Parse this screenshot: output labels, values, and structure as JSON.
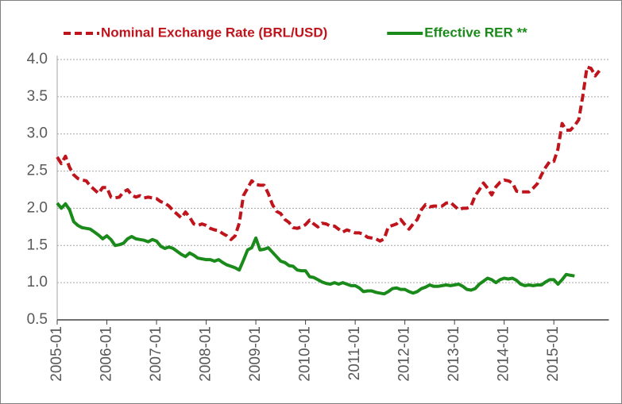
{
  "chart_data": {
    "type": "line",
    "x": [
      "2005-01",
      null,
      null,
      null,
      null,
      null,
      null,
      null,
      null,
      null,
      null,
      null,
      "2006-01",
      null,
      null,
      null,
      null,
      null,
      null,
      null,
      null,
      null,
      null,
      null,
      "2007-01",
      null,
      null,
      null,
      null,
      null,
      null,
      null,
      null,
      null,
      null,
      null,
      "2008-01",
      null,
      null,
      null,
      null,
      null,
      null,
      null,
      null,
      null,
      null,
      null,
      "2009-01",
      null,
      null,
      null,
      null,
      null,
      null,
      null,
      null,
      null,
      null,
      null,
      "2010-01",
      null,
      null,
      null,
      null,
      null,
      null,
      null,
      null,
      null,
      null,
      null,
      "2011-01",
      null,
      null,
      null,
      null,
      null,
      null,
      null,
      null,
      null,
      null,
      null,
      "2012-01",
      null,
      null,
      null,
      null,
      null,
      null,
      null,
      null,
      null,
      null,
      null,
      "2013-01",
      null,
      null,
      null,
      null,
      null,
      null,
      null,
      null,
      null,
      null,
      null,
      "2014-01",
      null,
      null,
      null,
      null,
      null,
      null,
      null,
      null,
      null,
      null,
      null,
      "2015-01",
      null,
      null,
      null,
      null,
      null,
      null,
      null,
      null,
      null,
      null,
      null
    ],
    "series": [
      {
        "name": "Nominal Exchange Rate (BRL/USD)",
        "color": "#c0141c",
        "style": "dashed",
        "values": [
          2.69,
          2.6,
          2.7,
          2.55,
          2.45,
          2.4,
          2.38,
          2.37,
          2.3,
          2.25,
          2.2,
          2.28,
          2.28,
          2.15,
          2.14,
          2.15,
          2.22,
          2.25,
          2.18,
          2.15,
          2.17,
          2.14,
          2.15,
          2.14,
          2.13,
          2.09,
          2.07,
          2.03,
          1.97,
          1.92,
          1.87,
          1.95,
          1.88,
          1.79,
          1.77,
          1.79,
          1.77,
          1.73,
          1.71,
          1.7,
          1.66,
          1.63,
          1.58,
          1.63,
          1.8,
          2.17,
          2.27,
          2.37,
          2.32,
          2.31,
          2.31,
          2.2,
          2.05,
          1.96,
          1.93,
          1.85,
          1.81,
          1.74,
          1.73,
          1.75,
          1.78,
          1.84,
          1.79,
          1.75,
          1.8,
          1.79,
          1.76,
          1.76,
          1.72,
          1.68,
          1.71,
          1.69,
          1.67,
          1.67,
          1.65,
          1.61,
          1.6,
          1.59,
          1.56,
          1.59,
          1.75,
          1.77,
          1.79,
          1.85,
          1.78,
          1.72,
          1.79,
          1.85,
          1.98,
          2.05,
          2.02,
          2.03,
          2.03,
          2.03,
          2.07,
          2.08,
          2.03,
          1.98,
          2.0,
          2.0,
          2.03,
          2.17,
          2.25,
          2.34,
          2.27,
          2.18,
          2.29,
          2.35,
          2.38,
          2.37,
          2.34,
          2.23,
          2.22,
          2.22,
          2.22,
          2.27,
          2.33,
          2.45,
          2.55,
          2.63,
          2.63,
          2.8,
          3.14,
          3.05,
          3.05,
          3.11,
          3.19,
          3.51,
          3.9,
          3.88,
          3.78,
          3.85
        ]
      },
      {
        "name": "Effective RER **",
        "color": "#1a8a1a",
        "style": "solid",
        "values": [
          2.07,
          2.0,
          2.06,
          1.98,
          1.82,
          1.77,
          1.74,
          1.73,
          1.72,
          1.68,
          1.64,
          1.59,
          1.63,
          1.58,
          1.5,
          1.51,
          1.53,
          1.59,
          1.62,
          1.59,
          1.58,
          1.57,
          1.55,
          1.58,
          1.56,
          1.49,
          1.46,
          1.48,
          1.46,
          1.42,
          1.38,
          1.35,
          1.4,
          1.37,
          1.33,
          1.32,
          1.31,
          1.31,
          1.29,
          1.31,
          1.27,
          1.24,
          1.22,
          1.2,
          1.17,
          1.3,
          1.44,
          1.47,
          1.6,
          1.44,
          1.45,
          1.47,
          1.41,
          1.35,
          1.29,
          1.27,
          1.23,
          1.22,
          1.17,
          1.16,
          1.16,
          1.08,
          1.07,
          1.04,
          1.01,
          0.99,
          0.98,
          1.0,
          0.98,
          1.0,
          0.98,
          0.96,
          0.96,
          0.93,
          0.88,
          0.89,
          0.89,
          0.87,
          0.86,
          0.85,
          0.88,
          0.92,
          0.93,
          0.91,
          0.91,
          0.88,
          0.86,
          0.88,
          0.92,
          0.94,
          0.97,
          0.95,
          0.95,
          0.96,
          0.97,
          0.96,
          0.97,
          0.98,
          0.95,
          0.91,
          0.9,
          0.92,
          0.98,
          1.02,
          1.06,
          1.04,
          1.0,
          1.04,
          1.06,
          1.05,
          1.06,
          1.03,
          0.98,
          0.96,
          0.97,
          0.96,
          0.97,
          0.97,
          1.01,
          1.04,
          1.04,
          0.98,
          1.04,
          1.11,
          1.1,
          1.09,
          null,
          null,
          null,
          null,
          null,
          null
        ]
      }
    ],
    "ylim": [
      0.5,
      4.0
    ],
    "yticks": [
      {
        "value": 0.5,
        "label": "0.5"
      },
      {
        "value": 1.0,
        "label": "1.0"
      },
      {
        "value": 1.5,
        "label": "1.5"
      },
      {
        "value": 2.0,
        "label": "2.0"
      },
      {
        "value": 2.5,
        "label": "2.5"
      },
      {
        "value": 3.0,
        "label": "3.0"
      },
      {
        "value": 3.5,
        "label": "3.5"
      },
      {
        "value": 4.0,
        "label": "4.0"
      }
    ],
    "grid": true,
    "legend": "top"
  }
}
